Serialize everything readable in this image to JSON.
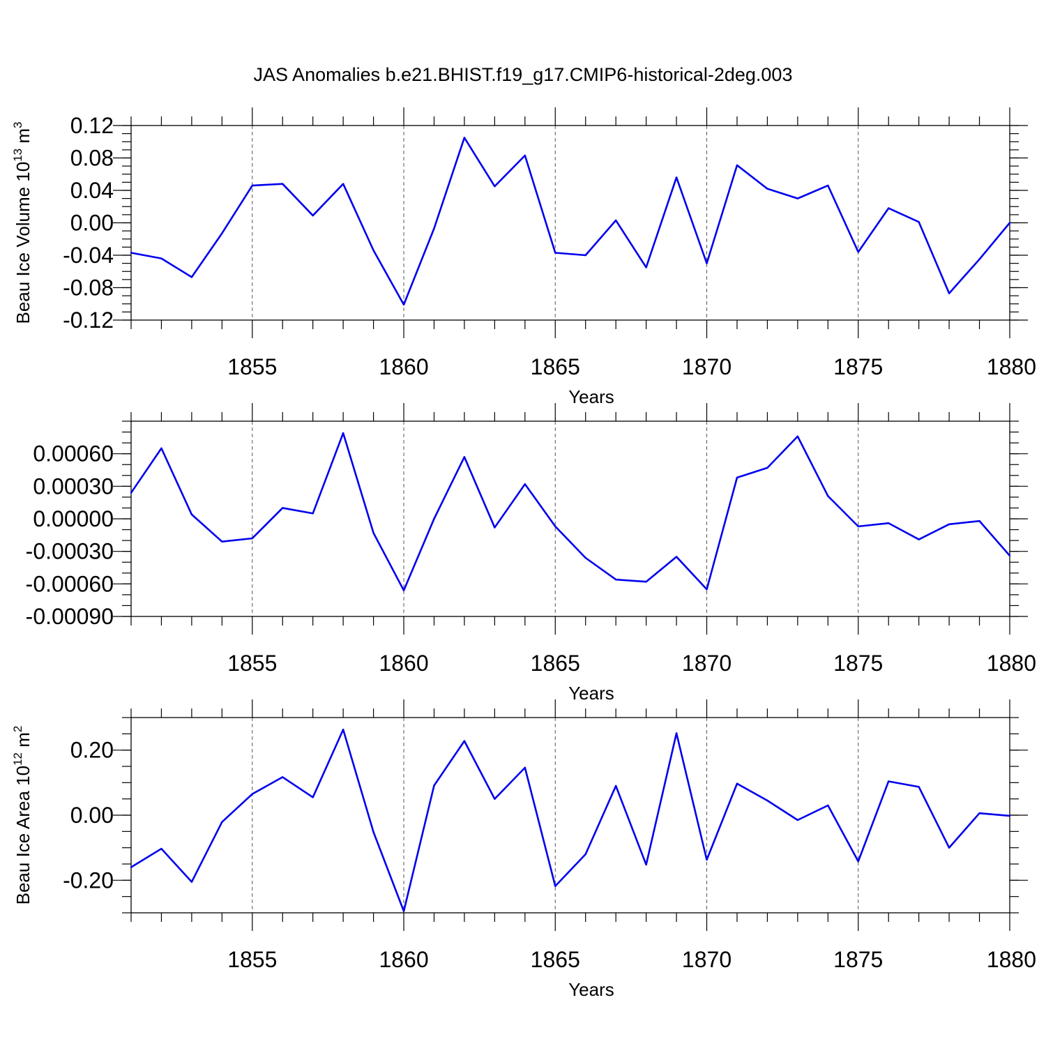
{
  "figure_title": "JAS Anomalies b.e21.BHIST.f19_g17.CMIP6-historical-2deg.003",
  "chart_data": [
    {
      "type": "line",
      "title": "JAS Anomalies b.e21.BHIST.f19_g17.CMIP6-historical-2deg.003",
      "xlabel": "Years",
      "ylabel": "Beau Ice Volume 10",
      "ylabel_exp": "13",
      "ylabel_unit": " m",
      "ylabel_unit_exp": "3",
      "xlim": [
        1851,
        1880
      ],
      "ylim": [
        -0.12,
        0.12
      ],
      "xticks": [
        1855,
        1860,
        1865,
        1870,
        1875,
        1880
      ],
      "xtick_labels": [
        "1855",
        "1860",
        "1865",
        "1870",
        "1875",
        "1880"
      ],
      "yticks": [
        -0.12,
        -0.08,
        -0.04,
        0.0,
        0.04,
        0.08,
        0.12
      ],
      "ytick_labels": [
        "-0.12",
        "-0.08",
        "-0.04",
        "0.00",
        "0.04",
        "0.08",
        "0.12"
      ],
      "grid": "vertical dashed at major x ticks",
      "color": "#0000ee",
      "x": [
        1851,
        1852,
        1853,
        1854,
        1855,
        1856,
        1857,
        1858,
        1859,
        1860,
        1861,
        1862,
        1863,
        1864,
        1865,
        1866,
        1867,
        1868,
        1869,
        1870,
        1871,
        1872,
        1873,
        1874,
        1875,
        1876,
        1877,
        1878,
        1879,
        1880
      ],
      "values": [
        -0.037,
        -0.044,
        -0.067,
        -0.013,
        0.046,
        0.048,
        0.009,
        0.048,
        -0.034,
        -0.101,
        -0.007,
        0.105,
        0.045,
        0.083,
        -0.037,
        -0.04,
        0.003,
        -0.055,
        0.056,
        -0.05,
        0.071,
        0.042,
        0.03,
        0.046,
        -0.036,
        0.018,
        0.001,
        -0.087,
        -0.045,
        0.0
      ]
    },
    {
      "type": "line",
      "xlabel": "Years",
      "ylabel": "",
      "xlim": [
        1851,
        1880
      ],
      "ylim": [
        -0.0009,
        0.0009
      ],
      "xticks": [
        1855,
        1860,
        1865,
        1870,
        1875,
        1880
      ],
      "xtick_labels": [
        "1855",
        "1860",
        "1865",
        "1870",
        "1875",
        "1880"
      ],
      "yticks": [
        -0.0009,
        -0.0006,
        -0.0003,
        0.0,
        0.0003,
        0.0006
      ],
      "ytick_labels": [
        "-0.00090",
        "-0.00060",
        "-0.00030",
        "0.00000",
        "0.00030",
        "0.00060"
      ],
      "grid": "vertical dashed at major x ticks",
      "color": "#0000ee",
      "x": [
        1851,
        1852,
        1853,
        1854,
        1855,
        1856,
        1857,
        1858,
        1859,
        1860,
        1861,
        1862,
        1863,
        1864,
        1865,
        1866,
        1867,
        1868,
        1869,
        1870,
        1871,
        1872,
        1873,
        1874,
        1875,
        1876,
        1877,
        1878,
        1879,
        1880
      ],
      "values": [
        0.00024,
        0.00065,
        4e-05,
        -0.00021,
        -0.00018,
        0.0001,
        5e-05,
        0.00079,
        -0.00013,
        -0.00066,
        0.0,
        0.00057,
        -8e-05,
        0.00032,
        -7e-05,
        -0.00036,
        -0.00056,
        -0.00058,
        -0.00035,
        -0.00065,
        0.00038,
        0.00047,
        0.00076,
        0.00021,
        -7e-05,
        -4e-05,
        -0.00019,
        -5e-05,
        -2e-05,
        -0.00034
      ]
    },
    {
      "type": "line",
      "xlabel": "Years",
      "ylabel": "Beau Ice Area 10",
      "ylabel_exp": "12",
      "ylabel_unit": " m",
      "ylabel_unit_exp": "2",
      "xlim": [
        1851,
        1880
      ],
      "ylim": [
        -0.3,
        0.3
      ],
      "xticks": [
        1855,
        1860,
        1865,
        1870,
        1875,
        1880
      ],
      "xtick_labels": [
        "1855",
        "1860",
        "1865",
        "1870",
        "1875",
        "1880"
      ],
      "yticks": [
        -0.2,
        0.0,
        0.2
      ],
      "ytick_labels": [
        "-0.20",
        "0.00",
        "0.20"
      ],
      "grid": "vertical dashed at major x ticks",
      "color": "#0000ee",
      "x": [
        1851,
        1852,
        1853,
        1854,
        1855,
        1856,
        1857,
        1858,
        1859,
        1860,
        1861,
        1862,
        1863,
        1864,
        1865,
        1866,
        1867,
        1868,
        1869,
        1870,
        1871,
        1872,
        1873,
        1874,
        1875,
        1876,
        1877,
        1878,
        1879,
        1880
      ],
      "values": [
        -0.16,
        -0.103,
        -0.205,
        -0.021,
        0.065,
        0.117,
        0.055,
        0.263,
        -0.052,
        -0.295,
        0.091,
        0.228,
        0.05,
        0.146,
        -0.218,
        -0.12,
        0.09,
        -0.152,
        0.252,
        -0.137,
        0.097,
        0.045,
        -0.015,
        0.03,
        -0.142,
        0.104,
        0.087,
        -0.1,
        0.006,
        -0.002
      ]
    }
  ]
}
